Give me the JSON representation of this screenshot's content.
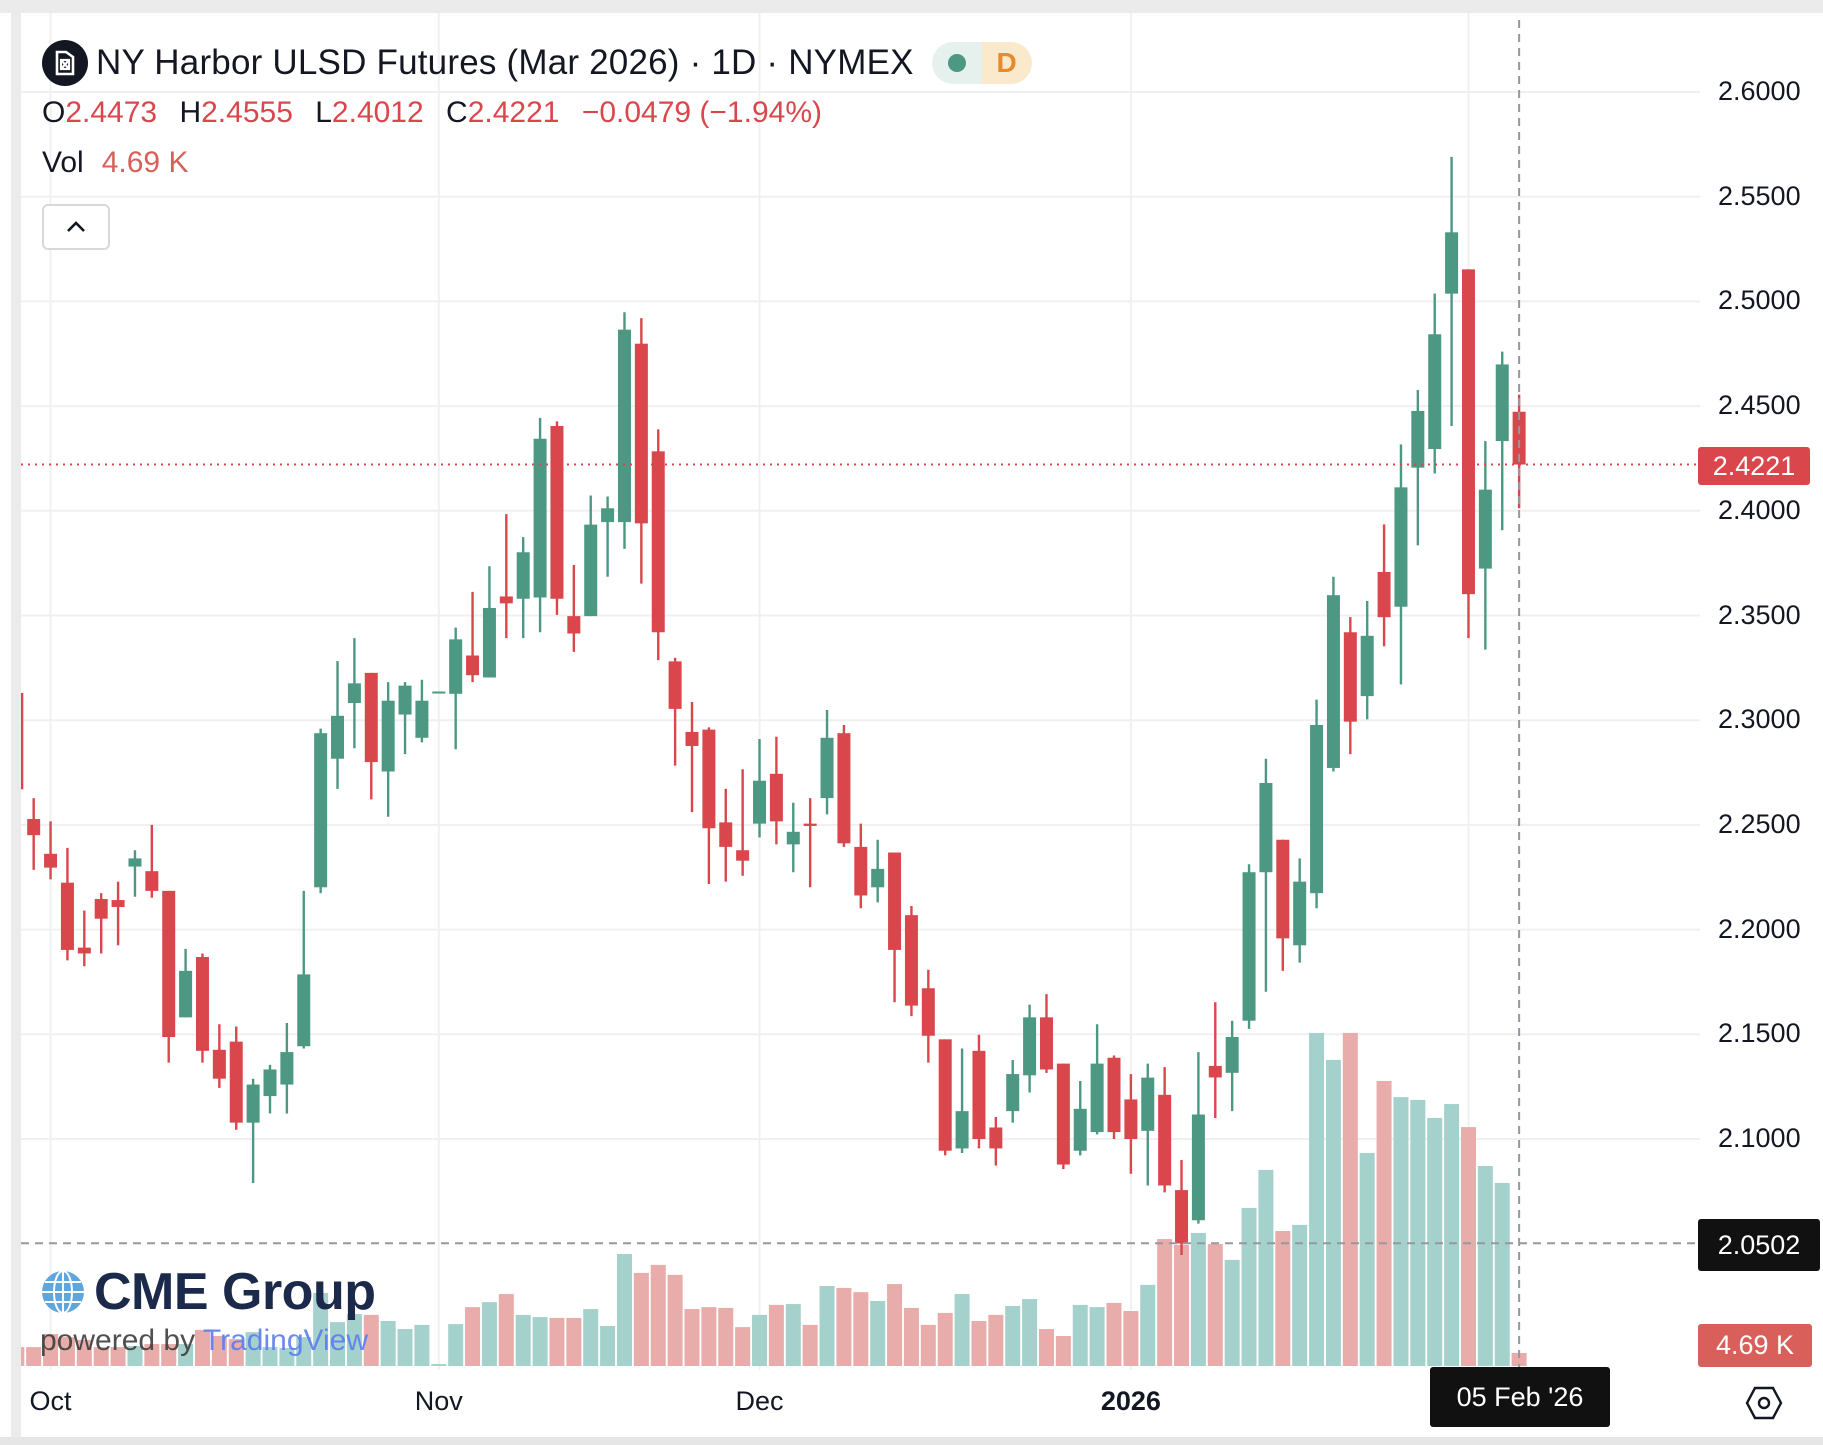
{
  "header": {
    "title": "NY Harbor ULSD Futures (Mar 2026) · 1D · NYMEX",
    "interval_badge": "D",
    "ohlc": {
      "o_label": "O",
      "o": "2.4473",
      "h_label": "H",
      "h": "2.4555",
      "l_label": "L",
      "l": "2.4012",
      "c_label": "C",
      "c": "2.4221",
      "change": "−0.0479 (−1.94%)"
    },
    "vol_label": "Vol",
    "vol_value": "4.69 K"
  },
  "price_axis": [
    "2.6000",
    "2.5500",
    "2.5000",
    "2.4500",
    "2.4000",
    "2.3500",
    "2.3000",
    "2.2500",
    "2.2000",
    "2.1500",
    "2.1000"
  ],
  "time_axis": [
    {
      "label": "Oct",
      "bold": false
    },
    {
      "label": "Nov",
      "bold": false
    },
    {
      "label": "Dec",
      "bold": false
    },
    {
      "label": "2026",
      "bold": true
    }
  ],
  "last_price_label": "2.4221",
  "crosshair_price_label": "2.0502",
  "crosshair_price": 2.0502,
  "crosshair_date_label": "05 Feb '26",
  "volume_label": "4.69 K",
  "logo": {
    "brand": "CME Group",
    "powered": "powered by",
    "platform": "TradingView"
  },
  "colors": {
    "up": "#4d9882",
    "down": "#d9474c",
    "vol_up": "#a5d1cc",
    "vol_down": "#e8adaa",
    "last_price": "#d9474c",
    "volume_tag": "#d9605a",
    "crosshair_tag": "#111111"
  },
  "chart_data": {
    "type": "candlestick",
    "title": "NY Harbor ULSD Futures (Mar 2026) · 1D · NYMEX",
    "x_range": [
      "Oct 2025",
      "05 Feb 2026"
    ],
    "ylim": [
      2.04,
      2.62
    ],
    "y_ticks": [
      2.6,
      2.55,
      2.5,
      2.45,
      2.4,
      2.35,
      2.3,
      2.25,
      2.2,
      2.15,
      2.1
    ],
    "month_starts_index": {
      "Oct": 2,
      "Nov": 25,
      "Dec": 44,
      "2026": 66,
      "Feb": 86
    },
    "last_price": 2.4221,
    "fields": [
      "open",
      "high",
      "low",
      "close",
      "volume_k"
    ],
    "candles": [
      [
        2.313,
        2.313,
        2.267,
        2.267,
        6.8
      ],
      [
        2.2528,
        2.2628,
        2.2285,
        2.2451,
        6.8
      ],
      [
        2.2362,
        2.2517,
        2.224,
        2.2296,
        11.5
      ],
      [
        2.2224,
        2.239,
        2.1853,
        2.1903,
        10.4
      ],
      [
        2.1914,
        2.2091,
        2.1825,
        2.1886,
        9.4
      ],
      [
        2.2146,
        2.2174,
        2.1886,
        2.2052,
        6.8
      ],
      [
        2.2141,
        2.2229,
        2.1925,
        2.2108,
        6.8
      ],
      [
        2.2301,
        2.2379,
        2.2157,
        2.234,
        7.2
      ],
      [
        2.2279,
        2.25,
        2.2152,
        2.2185,
        7.9
      ],
      [
        2.2185,
        2.2185,
        2.1365,
        2.1487,
        7.9
      ],
      [
        2.1581,
        2.1908,
        2.1581,
        2.1803,
        7.9
      ],
      [
        2.1869,
        2.1886,
        2.1365,
        2.1421,
        13.0
      ],
      [
        2.1426,
        2.1548,
        2.1244,
        2.1288,
        10.8
      ],
      [
        2.1465,
        2.1537,
        2.1044,
        2.1078,
        9.7
      ],
      [
        2.1078,
        2.1288,
        2.079,
        2.126,
        12.2
      ],
      [
        2.1205,
        2.1354,
        2.1122,
        2.1332,
        6.8
      ],
      [
        2.126,
        2.1554,
        2.1122,
        2.1415,
        6.5
      ],
      [
        2.1443,
        2.2185,
        2.1432,
        2.1786,
        10.4
      ],
      [
        2.2202,
        2.296,
        2.2174,
        2.2938,
        26.3
      ],
      [
        2.2816,
        2.3282,
        2.2672,
        2.3021,
        15.8
      ],
      [
        2.3082,
        2.3392,
        2.2866,
        2.3176,
        18.7
      ],
      [
        2.3226,
        2.3226,
        2.2622,
        2.28,
        18.4
      ],
      [
        2.2755,
        2.3182,
        2.2539,
        2.3093,
        16.2
      ],
      [
        2.3027,
        2.3182,
        2.2838,
        2.3165,
        13.3
      ],
      [
        2.2916,
        2.3193,
        2.2894,
        2.3093,
        14.8
      ],
      [
        2.3137,
        2.3137,
        2.3137,
        2.3137,
        0.7
      ],
      [
        2.3126,
        2.3442,
        2.2861,
        2.3386,
        15.1
      ],
      [
        2.3309,
        2.3613,
        2.3182,
        2.3215,
        21.2
      ],
      [
        2.3204,
        2.3735,
        2.3204,
        2.3536,
        23.0
      ],
      [
        2.3591,
        2.3984,
        2.3392,
        2.3558,
        25.9
      ],
      [
        2.358,
        2.3874,
        2.3392,
        2.3802,
        18.4
      ],
      [
        2.3586,
        2.4444,
        2.342,
        2.4344,
        17.6
      ],
      [
        2.4405,
        2.4427,
        2.3503,
        2.358,
        17.3
      ],
      [
        2.3497,
        2.3741,
        2.3326,
        2.3414,
        17.3
      ],
      [
        2.3497,
        2.4073,
        2.3497,
        2.3934,
        20.5
      ],
      [
        2.3946,
        2.4068,
        2.3685,
        2.4012,
        14.4
      ],
      [
        2.3946,
        2.4948,
        2.3818,
        2.4865,
        40.3
      ],
      [
        2.4798,
        2.492,
        2.3652,
        2.394,
        33.5
      ],
      [
        2.4284,
        2.4389,
        2.3287,
        2.342,
        36.4
      ],
      [
        2.3281,
        2.3298,
        2.2783,
        2.3054,
        32.8
      ],
      [
        2.2944,
        2.3087,
        2.2561,
        2.2877,
        20.5
      ],
      [
        2.2955,
        2.2966,
        2.2218,
        2.2484,
        21.2
      ],
      [
        2.2512,
        2.2672,
        2.2229,
        2.2395,
        20.9
      ],
      [
        2.2379,
        2.2766,
        2.2257,
        2.2329,
        14.0
      ],
      [
        2.2506,
        2.291,
        2.244,
        2.2711,
        18.4
      ],
      [
        2.2744,
        2.2921,
        2.2407,
        2.2517,
        22.0
      ],
      [
        2.2407,
        2.2606,
        2.2274,
        2.2467,
        22.3
      ],
      [
        2.2506,
        2.2628,
        2.2202,
        2.2495,
        14.8
      ],
      [
        2.2628,
        2.3049,
        2.255,
        2.2916,
        28.8
      ],
      [
        2.2938,
        2.2977,
        2.2395,
        2.2412,
        28.1
      ],
      [
        2.2395,
        2.2506,
        2.2102,
        2.2163,
        26.6
      ],
      [
        2.2202,
        2.2429,
        2.213,
        2.229,
        23.4
      ],
      [
        2.2368,
        2.2368,
        2.1653,
        2.1903,
        29.5
      ],
      [
        2.2069,
        2.2113,
        2.1587,
        2.1637,
        20.9
      ],
      [
        2.172,
        2.1808,
        2.1365,
        2.1493,
        14.8
      ],
      [
        2.1476,
        2.1476,
        2.0922,
        2.0944,
        19.1
      ],
      [
        2.0955,
        2.1432,
        2.0933,
        2.1133,
        25.9
      ],
      [
        2.1421,
        2.1498,
        2.0955,
        2.1,
        16.2
      ],
      [
        2.1055,
        2.1105,
        2.0873,
        2.0955,
        18.4
      ],
      [
        2.1133,
        2.1377,
        2.1078,
        2.131,
        21.6
      ],
      [
        2.1304,
        2.1642,
        2.1222,
        2.1581,
        24.1
      ],
      [
        2.1581,
        2.1692,
        2.1316,
        2.1332,
        13.3
      ],
      [
        2.136,
        2.136,
        2.0856,
        2.0878,
        10.8
      ],
      [
        2.0944,
        2.1277,
        2.0922,
        2.1144,
        22.0
      ],
      [
        2.1033,
        2.1548,
        2.1022,
        2.136,
        21.2
      ],
      [
        2.1388,
        2.1399,
        2.1,
        2.1033,
        22.7
      ],
      [
        2.1189,
        2.131,
        2.0834,
        2.1,
        19.8
      ],
      [
        2.1039,
        2.136,
        2.0778,
        2.1293,
        29.2
      ],
      [
        2.1211,
        2.1343,
        2.0745,
        2.0778,
        45.7
      ],
      [
        2.0756,
        2.09,
        2.0446,
        2.0501,
        43.6
      ],
      [
        2.0612,
        2.1415,
        2.0596,
        2.1117,
        47.9
      ],
      [
        2.1349,
        2.1653,
        2.11,
        2.1294,
        43.9
      ],
      [
        2.1316,
        2.1565,
        2.1133,
        2.1487,
        38.2
      ],
      [
        2.1565,
        2.2312,
        2.1526,
        2.2274,
        56.9
      ],
      [
        2.2274,
        2.2816,
        2.1703,
        2.27,
        70.6
      ],
      [
        2.2429,
        2.2429,
        2.1803,
        2.1958,
        48.6
      ],
      [
        2.1925,
        2.234,
        2.1842,
        2.2229,
        50.8
      ],
      [
        2.2174,
        2.3098,
        2.2102,
        2.2977,
        119.9
      ],
      [
        2.2772,
        2.3685,
        2.2755,
        2.3597,
        110.2
      ],
      [
        2.342,
        2.3492,
        2.2838,
        2.2993,
        119.9
      ],
      [
        2.3115,
        2.3569,
        2.3004,
        2.3403,
        76.7
      ],
      [
        2.3708,
        2.3935,
        2.3353,
        2.3492,
        102.6
      ],
      [
        2.3542,
        2.4317,
        2.3171,
        2.4112,
        96.8
      ],
      [
        2.4206,
        2.4577,
        2.3835,
        2.4477,
        95.8
      ],
      [
        2.4295,
        2.5037,
        2.4178,
        2.4843,
        89.3
      ],
      [
        2.5037,
        2.569,
        2.4405,
        2.533,
        94.3
      ],
      [
        2.5153,
        2.5153,
        2.3392,
        2.3602,
        86.0
      ],
      [
        2.3724,
        2.4333,
        2.3337,
        2.4101,
        72.0
      ],
      [
        2.4333,
        2.476,
        2.3907,
        2.4699,
        65.9
      ],
      [
        2.4473,
        2.4555,
        2.4012,
        2.4221,
        4.69
      ]
    ]
  }
}
